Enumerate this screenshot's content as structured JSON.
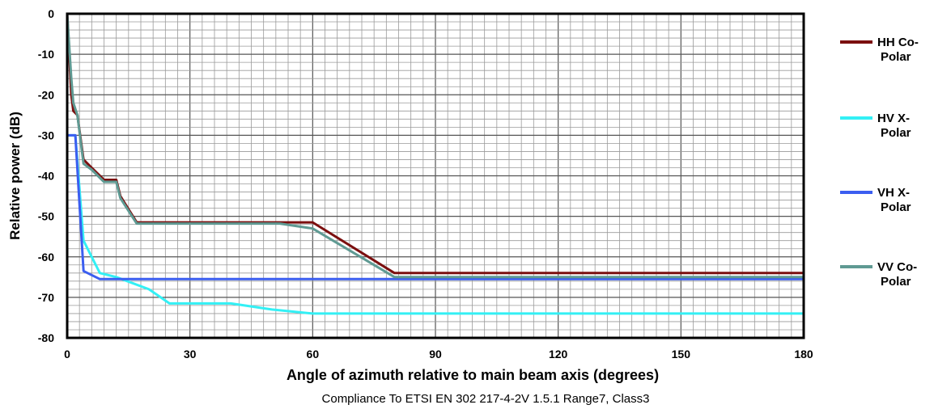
{
  "chart_data": {
    "type": "line",
    "xlabel": "Angle of azimuth relative to main beam axis (degrees)",
    "ylabel": "Relative power (dB)",
    "caption": "Compliance To ETSI EN 302 217-4-2V 1.5.1 Range7,  Class3",
    "xlim": [
      0,
      180
    ],
    "ylim": [
      -80,
      0
    ],
    "xticks": [
      0,
      30,
      60,
      90,
      120,
      150,
      180
    ],
    "yticks": [
      0,
      -10,
      -20,
      -30,
      -40,
      -50,
      -60,
      -70,
      -80
    ],
    "grid": true,
    "legend_position": "right",
    "series": [
      {
        "name_lines": [
          "HH Co-",
          "Polar"
        ],
        "color": "#7b0f0f",
        "points": [
          [
            0,
            0
          ],
          [
            1,
            -20
          ],
          [
            1.5,
            -24
          ],
          [
            2.5,
            -25
          ],
          [
            4,
            -36
          ],
          [
            6,
            -38
          ],
          [
            8,
            -40
          ],
          [
            9,
            -41
          ],
          [
            12,
            -41
          ],
          [
            13,
            -45
          ],
          [
            17,
            -51.5
          ],
          [
            60,
            -51.5
          ],
          [
            80,
            -64
          ],
          [
            180,
            -64
          ]
        ]
      },
      {
        "name_lines": [
          "HV X-",
          "Polar"
        ],
        "color": "#33f0f5",
        "points": [
          [
            0,
            -30
          ],
          [
            2,
            -30
          ],
          [
            4,
            -56
          ],
          [
            6,
            -60
          ],
          [
            8,
            -64
          ],
          [
            12,
            -65
          ],
          [
            20,
            -68
          ],
          [
            25,
            -71.5
          ],
          [
            40,
            -71.5
          ],
          [
            50,
            -73
          ],
          [
            60,
            -74
          ],
          [
            180,
            -74
          ]
        ]
      },
      {
        "name_lines": [
          "VH X-",
          "Polar"
        ],
        "color": "#3b5ef0",
        "points": [
          [
            0,
            -30
          ],
          [
            2,
            -30
          ],
          [
            4,
            -63.5
          ],
          [
            8,
            -65.5
          ],
          [
            180,
            -65.5
          ]
        ]
      },
      {
        "name_lines": [
          "VV Co-",
          "Polar"
        ],
        "color": "#5f9a93",
        "points": [
          [
            0,
            0
          ],
          [
            1,
            -16
          ],
          [
            1.5,
            -22
          ],
          [
            2.5,
            -25
          ],
          [
            4,
            -37
          ],
          [
            6,
            -38.5
          ],
          [
            8,
            -40.5
          ],
          [
            9,
            -41.5
          ],
          [
            12,
            -41.5
          ],
          [
            13,
            -45.5
          ],
          [
            17,
            -51.8
          ],
          [
            52,
            -51.8
          ],
          [
            60,
            -53
          ],
          [
            80,
            -65
          ],
          [
            180,
            -65
          ]
        ]
      }
    ]
  }
}
